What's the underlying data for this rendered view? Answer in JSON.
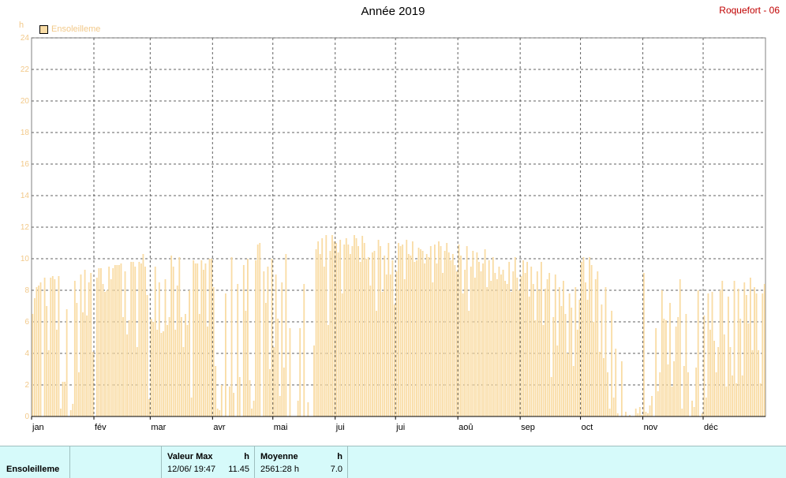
{
  "header": {
    "title": "Année 2019",
    "station": "Roquefort - 06",
    "unit": "h"
  },
  "footer": {
    "series_label": "Ensoleilleme",
    "max_label": "Valeur Max",
    "max_unit": "h",
    "max_date": "12/06/ 19:47",
    "max_value": "11.45",
    "mean_label": "Moyenne",
    "mean_unit": "h",
    "total": "2561:28 h",
    "mean_value": "7.0"
  },
  "colors": {
    "bar": "#f9dca5",
    "axis_text": "#f2c98a",
    "grid": "#606060",
    "station": "#c00000",
    "footer_bg": "#d6fafa"
  },
  "chart_data": {
    "type": "bar",
    "title": "Année 2019",
    "ylabel": "h",
    "ylim": [
      0,
      24
    ],
    "yticks": [
      "0",
      "2",
      "4",
      "6",
      "8",
      "10",
      "12",
      "14",
      "16",
      "18",
      "20",
      "22",
      "24"
    ],
    "month_labels": [
      "jan",
      "fév",
      "mar",
      "avr",
      "mai",
      "jui",
      "jui",
      "aoû",
      "sep",
      "oct",
      "nov",
      "déc"
    ],
    "grid": true,
    "legend": "top-left",
    "series": [
      {
        "name": "Ensoleilleme",
        "values": [
          6.5,
          7.5,
          8.2,
          8.3,
          8.5,
          0,
          8.8,
          7,
          4.2,
          8.8,
          8.9,
          8.7,
          5.5,
          8.9,
          0.5,
          2.2,
          2.2,
          6.8,
          0,
          0.4,
          0.8,
          8.6,
          7.2,
          2.8,
          9.0,
          6.6,
          9.3,
          6.4,
          8.5,
          9.1,
          4.1,
          0,
          8.8,
          9.4,
          9.4,
          8.4,
          7.9,
          8,
          9.5,
          8.7,
          9.4,
          9.6,
          9.6,
          9.6,
          9.7,
          6.3,
          9.2,
          5.2,
          6.1,
          9.8,
          9.8,
          9.5,
          4.4,
          9.8,
          9.7,
          10.3,
          9.5,
          7.7,
          1.1,
          6.2,
          6.0,
          9.5,
          5.5,
          8.5,
          5.3,
          5.4,
          8.7,
          5.8,
          6.3,
          10.2,
          9.5,
          5.5,
          8.3,
          10.1,
          6.3,
          4.4,
          6.5,
          5.8,
          8.0,
          1.2,
          9.9,
          9.7,
          9.7,
          6.5,
          9.9,
          9.3,
          9.7,
          5.7,
          10,
          10,
          8.2,
          3.2,
          0.5,
          0.4,
          2,
          0,
          7.8,
          0,
          1.9,
          10.1,
          1.5,
          0,
          8.4,
          2.5,
          0,
          9.6,
          6.7,
          10,
          2.3,
          0.5,
          1.0,
          9.9,
          10.9,
          11,
          0,
          9.2,
          7.2,
          9.5,
          3,
          10,
          4.4,
          9.0,
          6.2,
          1.3,
          8.5,
          3.1,
          10.3,
          0,
          5.6,
          0,
          0,
          0,
          1,
          5.6,
          0,
          8.4,
          0,
          0.9,
          0,
          0,
          4.5,
          10.6,
          11.1,
          10.3,
          11.3,
          9.5,
          11.5,
          5.8,
          10.5,
          11.5,
          11.1,
          11.0,
          10.4,
          11.2,
          7.8,
          10.9,
          11.3,
          10.9,
          10.3,
          10.8,
          11.5,
          11.3,
          10.8,
          9.8,
          11.45,
          11,
          10,
          10.1,
          8.3,
          10.4,
          10.5,
          6.7,
          11.2,
          10.8,
          7.9,
          10.2,
          9.0,
          11,
          9,
          9.9,
          7.1,
          9.2,
          11,
          10.8,
          10.9,
          8.7,
          11.2,
          10.3,
          10.2,
          11.1,
          9.8,
          9.9,
          10.7,
          10.6,
          10.5,
          9.7,
          10.3,
          10.1,
          10.8,
          8.5,
          10.9,
          9.7,
          11.1,
          10.8,
          9.1,
          10.5,
          11.0,
          10.4,
          9.9,
          10.3,
          9.6,
          9.2,
          10.9,
          10.2,
          7.8,
          9.3,
          10.8,
          6.7,
          9.5,
          10.5,
          8.8,
          10.4,
          9.8,
          9.2,
          9.7,
          10.6,
          8.2,
          9.9,
          8.6,
          10.1,
          9.1,
          8.7,
          9.5,
          9.0,
          9.3,
          8.6,
          8.4,
          9.8,
          7.9,
          9.2,
          10.1,
          8.8,
          8.0,
          8.9,
          9.9,
          9.1,
          9.8,
          7.6,
          9.5,
          8.4,
          6.1,
          9.2,
          8.0,
          9.8,
          5.8,
          8.1,
          8.7,
          9.1,
          2.5,
          6.3,
          9.0,
          4.5,
          8.2,
          7.0,
          8.6,
          6.5,
          4.0,
          7.8,
          6.9,
          3.2,
          8.2,
          5.5,
          7.4,
          9.8,
          10.1,
          8.5,
          7.4,
          10.1,
          9.6,
          6.0,
          8.7,
          9.2,
          4.1,
          7.1,
          3.7,
          8.2,
          2.8,
          0.5,
          6.7,
          1.2,
          4.3,
          0.2,
          0,
          3.5,
          0,
          0.3,
          0,
          0.1,
          0,
          0,
          0.5,
          0.2,
          0.6,
          0.1,
          9.1,
          0.3,
          0.2,
          0.7,
          1.3,
          0,
          5.6,
          1.6,
          2.8,
          8.0,
          6.2,
          6.1,
          3.3,
          7.2,
          1.9,
          3.5,
          5.7,
          6.3,
          8.7,
          0.5,
          3.2,
          6.5,
          2.8,
          0,
          1.0,
          0.6,
          3.1,
          8.0,
          0,
          0.2,
          6.4,
          1.2,
          7.8,
          5.5,
          7.9,
          4.8,
          2.8,
          4.4,
          8.0,
          8.6,
          5.2,
          1.9,
          7.6,
          4.4,
          2.6,
          8.6,
          2.1,
          8.1,
          6.2,
          2.6,
          8.5,
          7.7,
          5.9,
          8.8,
          4.2,
          8.2,
          7.8,
          4.2,
          2.1,
          7.8,
          8.4
        ]
      }
    ]
  }
}
